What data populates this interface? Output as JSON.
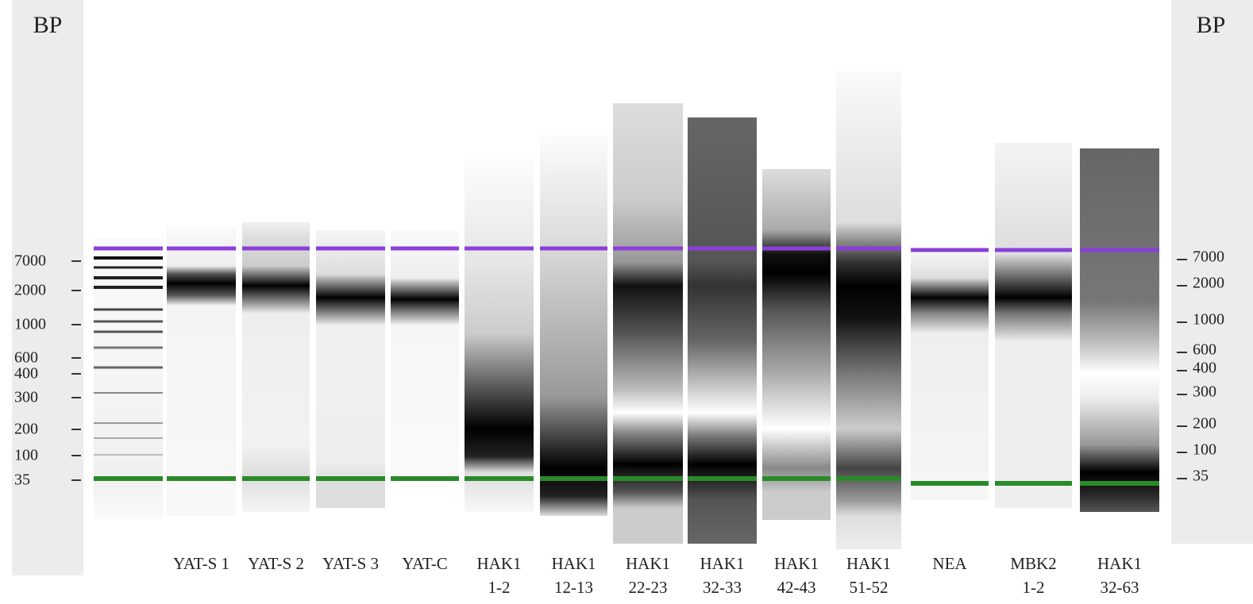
{
  "left_axis": {
    "title": "BP",
    "ticks": [
      "7000",
      "2000",
      "1000",
      "600",
      "400",
      "300",
      "200",
      "100",
      "35"
    ]
  },
  "right_axis": {
    "title": "BP",
    "ticks": [
      "7000",
      "2000",
      "1000",
      "600",
      "400",
      "300",
      "200",
      "100",
      "35"
    ]
  },
  "lanes": [
    {
      "label": [
        "YAT-S 1"
      ]
    },
    {
      "label": [
        "YAT-S 2"
      ]
    },
    {
      "label": [
        "YAT-S 3"
      ]
    },
    {
      "label": [
        "YAT-C"
      ]
    },
    {
      "label": [
        "HAK1",
        "1-2"
      ]
    },
    {
      "label": [
        "HAK1",
        "12-13"
      ]
    },
    {
      "label": [
        "HAK1",
        "22-23"
      ]
    },
    {
      "label": [
        "HAK1",
        "32-33"
      ]
    },
    {
      "label": [
        "HAK1",
        "42-43"
      ]
    },
    {
      "label": [
        "HAK1",
        "51-52"
      ]
    },
    {
      "label": [
        "NEA"
      ]
    },
    {
      "label": [
        "MBK2",
        "1-2"
      ]
    },
    {
      "label": [
        "HAK1",
        "32-63"
      ]
    }
  ]
}
